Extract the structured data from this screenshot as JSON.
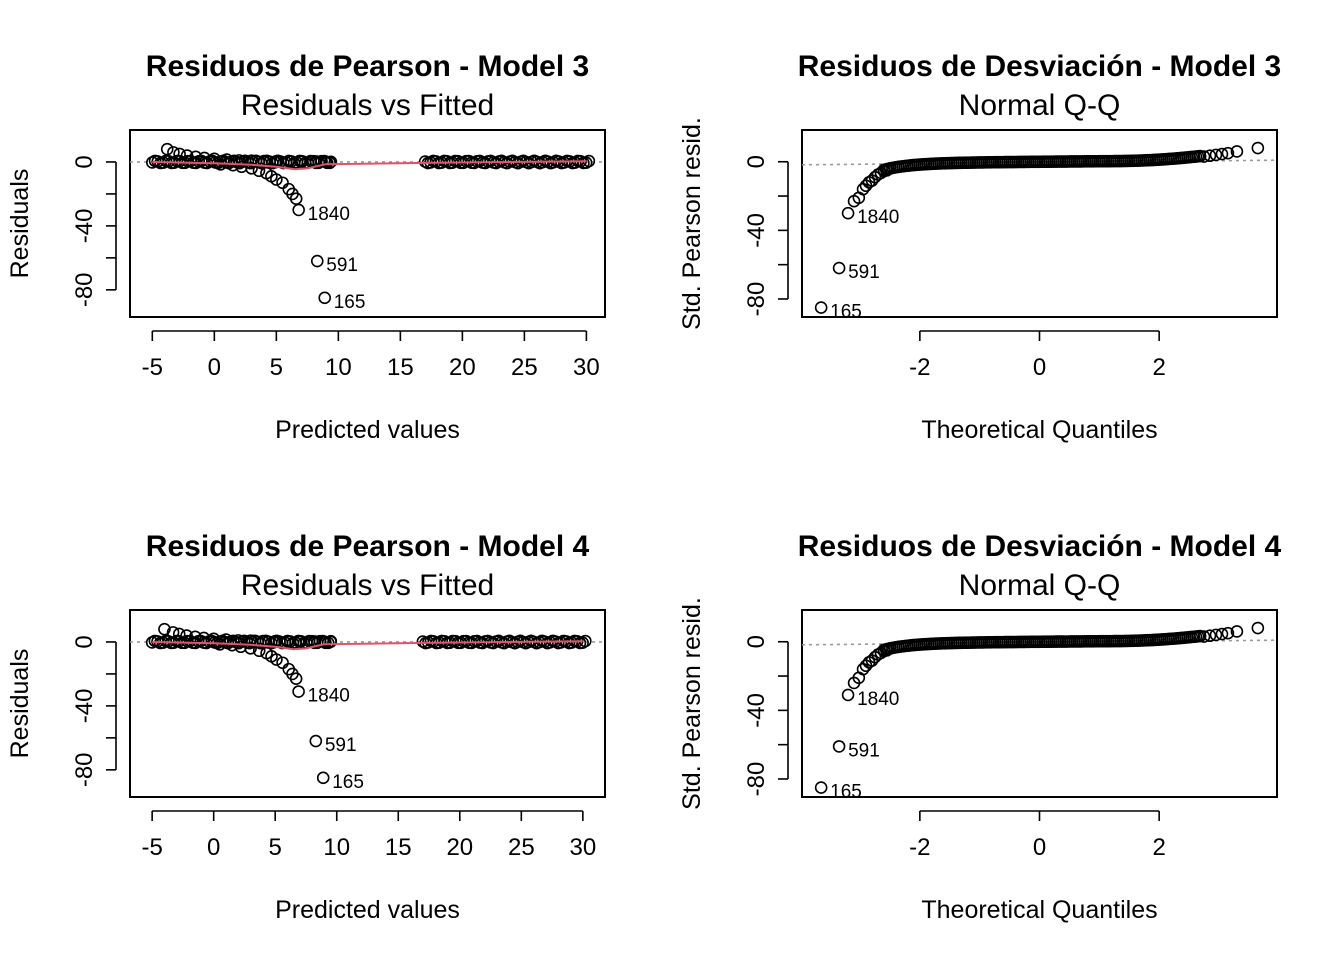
{
  "chart_data": [
    {
      "type": "scatter",
      "title": "Residuos de Pearson - Model 3",
      "subtitle": "Residuals vs Fitted",
      "xlabel": "Predicted values",
      "ylabel": "Residuals",
      "xlim": [
        -6.8,
        31.5
      ],
      "ylim": [
        -97,
        20
      ],
      "xticks": [
        -5,
        0,
        5,
        10,
        15,
        20,
        25,
        30
      ],
      "xtick_labels": [
        "-5",
        "0",
        "5",
        "10",
        "15",
        "20",
        "25",
        "30"
      ],
      "yticks": [
        0,
        -20,
        -40,
        -60,
        -80
      ],
      "ytick_labels": [
        "0",
        "",
        "-40",
        "",
        "-80"
      ],
      "reference_line": {
        "y": 0,
        "style": "dotted",
        "color": "#9a9a9a"
      },
      "smoother": {
        "color": "#DF536B",
        "x": [
          -5,
          0,
          3,
          5,
          6.5,
          7.5,
          9,
          17,
          30
        ],
        "y": [
          0,
          -0.8,
          -1.8,
          -3,
          -4.6,
          -4,
          -1.4,
          -0.6,
          0.5
        ]
      },
      "dense_bands": [
        {
          "x_from": -5,
          "x_to": 9.5,
          "y": 0
        },
        {
          "x_from": 17,
          "x_to": 30.3,
          "y": 0
        }
      ],
      "points": [
        {
          "x": -3.8,
          "y": 8
        },
        {
          "x": -3.3,
          "y": 6
        },
        {
          "x": -2.8,
          "y": 5
        },
        {
          "x": -2.2,
          "y": 4
        },
        {
          "x": -1.5,
          "y": 3.2
        },
        {
          "x": -0.8,
          "y": 2.5
        },
        {
          "x": 0,
          "y": 2
        },
        {
          "x": 1,
          "y": 1.5
        },
        {
          "x": 2,
          "y": 1
        },
        {
          "x": 3,
          "y": 0.8
        },
        {
          "x": 4,
          "y": 0.6
        },
        {
          "x": 5,
          "y": 0.5
        },
        {
          "x": 6,
          "y": 0.4
        },
        {
          "x": 7,
          "y": 0.3
        },
        {
          "x": 8.2,
          "y": 0.3
        },
        {
          "x": 9,
          "y": 0.2
        },
        {
          "x": 9.4,
          "y": 0.1
        },
        {
          "x": 0.5,
          "y": -1.5
        },
        {
          "x": 1.5,
          "y": -2
        },
        {
          "x": 2.2,
          "y": -3
        },
        {
          "x": 3,
          "y": -4
        },
        {
          "x": 3.6,
          "y": -5.5
        },
        {
          "x": 4.2,
          "y": -7
        },
        {
          "x": 4.6,
          "y": -9
        },
        {
          "x": 5.0,
          "y": -11
        },
        {
          "x": 5.5,
          "y": -13
        },
        {
          "x": 6.0,
          "y": -17
        },
        {
          "x": 6.3,
          "y": -20
        },
        {
          "x": 6.6,
          "y": -23
        },
        {
          "x": 6.8,
          "y": -30
        },
        {
          "x": 8.3,
          "y": -62
        },
        {
          "x": 8.9,
          "y": -85
        }
      ],
      "labeled_points": [
        {
          "x": 6.8,
          "y": -30,
          "label": "1840"
        },
        {
          "x": 8.3,
          "y": -62,
          "label": "591"
        },
        {
          "x": 8.9,
          "y": -85,
          "label": "165"
        }
      ]
    },
    {
      "type": "scatter",
      "title": "Residuos de Desviación - Model 3",
      "subtitle": "Normal Q-Q",
      "xlabel": "Theoretical Quantiles",
      "ylabel": "Std. Pearson resid.",
      "xlim": [
        -3.97,
        3.97
      ],
      "ylim": [
        -90.5,
        18.5
      ],
      "xticks": [
        -2,
        0,
        2
      ],
      "xtick_labels": [
        "-2",
        "0",
        "2"
      ],
      "yticks": [
        0,
        -20,
        -40,
        -60,
        -80
      ],
      "ytick_labels": [
        "0",
        "",
        "-40",
        "",
        "-80"
      ],
      "reference_line": {
        "from": [
          -3.97,
          -1.8
        ],
        "to": [
          3.97,
          0.9
        ],
        "style": "dotted",
        "color": "#9a9a9a"
      },
      "qq_band": {
        "x_from": -2.6,
        "x_to": 2.7
      },
      "points": [
        {
          "x": -3.65,
          "y": -85
        },
        {
          "x": -3.35,
          "y": -62
        },
        {
          "x": -3.2,
          "y": -30
        },
        {
          "x": -3.1,
          "y": -23
        },
        {
          "x": -3.02,
          "y": -21
        },
        {
          "x": -2.95,
          "y": -16
        },
        {
          "x": -2.9,
          "y": -14
        },
        {
          "x": -2.85,
          "y": -12
        },
        {
          "x": -2.8,
          "y": -11
        },
        {
          "x": -2.75,
          "y": -9
        },
        {
          "x": -2.7,
          "y": -7.5
        },
        {
          "x": -2.65,
          "y": -6.5
        },
        {
          "x": -2.6,
          "y": -5.5
        },
        {
          "x": -2.55,
          "y": -5
        },
        {
          "x": -2.5,
          "y": -4
        },
        {
          "x": 2.75,
          "y": 3
        },
        {
          "x": 2.85,
          "y": 3.5
        },
        {
          "x": 2.95,
          "y": 4
        },
        {
          "x": 3.05,
          "y": 4.5
        },
        {
          "x": 3.15,
          "y": 5
        },
        {
          "x": 3.3,
          "y": 6
        },
        {
          "x": 3.65,
          "y": 8
        }
      ],
      "labeled_points": [
        {
          "x": -3.2,
          "y": -30,
          "label": "1840"
        },
        {
          "x": -3.35,
          "y": -62,
          "label": "591"
        },
        {
          "x": -3.65,
          "y": -85,
          "label": "165"
        }
      ]
    },
    {
      "type": "scatter",
      "title": "Residuos de Pearson - Model 4",
      "subtitle": "Residuals vs Fitted",
      "xlabel": "Predicted values",
      "ylabel": "Residuals",
      "xlim": [
        -6.8,
        31.8
      ],
      "ylim": [
        -97,
        20
      ],
      "xticks": [
        -5,
        0,
        5,
        10,
        15,
        20,
        25,
        30
      ],
      "xtick_labels": [
        "-5",
        "0",
        "5",
        "10",
        "15",
        "20",
        "25",
        "30"
      ],
      "yticks": [
        0,
        -20,
        -40,
        -60,
        -80
      ],
      "ytick_labels": [
        "0",
        "",
        "-40",
        "",
        "-80"
      ],
      "reference_line": {
        "y": 0,
        "style": "dotted",
        "color": "#9a9a9a"
      },
      "smoother": {
        "color": "#DF536B",
        "x": [
          -5,
          0,
          3,
          5,
          6.5,
          7.5,
          9,
          17,
          30
        ],
        "y": [
          0,
          -0.8,
          -1.8,
          -3,
          -4.6,
          -4,
          -1.4,
          -0.6,
          0.5
        ]
      },
      "dense_bands": [
        {
          "x_from": -5,
          "x_to": 9.6,
          "y": 0
        },
        {
          "x_from": 17,
          "x_to": 30.4,
          "y": 0
        }
      ],
      "points": [
        {
          "x": -4.0,
          "y": 8
        },
        {
          "x": -3.3,
          "y": 6
        },
        {
          "x": -2.8,
          "y": 5
        },
        {
          "x": -2.2,
          "y": 4
        },
        {
          "x": -1.5,
          "y": 3.2
        },
        {
          "x": -0.8,
          "y": 2.5
        },
        {
          "x": 0,
          "y": 2
        },
        {
          "x": 1,
          "y": 1.5
        },
        {
          "x": 2,
          "y": 1
        },
        {
          "x": 3,
          "y": 0.8
        },
        {
          "x": 4,
          "y": 0.6
        },
        {
          "x": 5,
          "y": 0.5
        },
        {
          "x": 6,
          "y": 0.4
        },
        {
          "x": 7,
          "y": 0.3
        },
        {
          "x": 8.2,
          "y": 0.3
        },
        {
          "x": 9,
          "y": 0.2
        },
        {
          "x": 9.5,
          "y": 0.1
        },
        {
          "x": 0.5,
          "y": -1.5
        },
        {
          "x": 1.5,
          "y": -2
        },
        {
          "x": 2.2,
          "y": -3
        },
        {
          "x": 3,
          "y": -4
        },
        {
          "x": 3.7,
          "y": -5.5
        },
        {
          "x": 4.3,
          "y": -7
        },
        {
          "x": 4.7,
          "y": -9
        },
        {
          "x": 5.1,
          "y": -11
        },
        {
          "x": 5.6,
          "y": -13
        },
        {
          "x": 6.1,
          "y": -17
        },
        {
          "x": 6.4,
          "y": -20
        },
        {
          "x": 6.7,
          "y": -23
        },
        {
          "x": 6.9,
          "y": -31
        },
        {
          "x": 8.3,
          "y": -62
        },
        {
          "x": 8.9,
          "y": -85
        }
      ],
      "labeled_points": [
        {
          "x": 6.9,
          "y": -31,
          "label": "1840"
        },
        {
          "x": 8.3,
          "y": -62,
          "label": "591"
        },
        {
          "x": 8.9,
          "y": -85,
          "label": "165"
        }
      ]
    },
    {
      "type": "scatter",
      "title": "Residuos de Desviación - Model 4",
      "subtitle": "Normal Q-Q",
      "xlabel": "Theoretical Quantiles",
      "ylabel": "Std. Pearson resid.",
      "xlim": [
        -3.97,
        3.97
      ],
      "ylim": [
        -90.5,
        18.5
      ],
      "xticks": [
        -2,
        0,
        2
      ],
      "xtick_labels": [
        "-2",
        "0",
        "2"
      ],
      "yticks": [
        0,
        -20,
        -40,
        -60,
        -80
      ],
      "ytick_labels": [
        "0",
        "",
        "-40",
        "",
        "-80"
      ],
      "reference_line": {
        "from": [
          -3.97,
          -1.8
        ],
        "to": [
          3.97,
          0.9
        ],
        "style": "dotted",
        "color": "#9a9a9a"
      },
      "qq_band": {
        "x_from": -2.6,
        "x_to": 2.7
      },
      "points": [
        {
          "x": -3.65,
          "y": -85
        },
        {
          "x": -3.35,
          "y": -61
        },
        {
          "x": -3.2,
          "y": -31
        },
        {
          "x": -3.1,
          "y": -24
        },
        {
          "x": -3.02,
          "y": -21
        },
        {
          "x": -2.95,
          "y": -16
        },
        {
          "x": -2.9,
          "y": -14
        },
        {
          "x": -2.85,
          "y": -12
        },
        {
          "x": -2.8,
          "y": -11
        },
        {
          "x": -2.75,
          "y": -9
        },
        {
          "x": -2.7,
          "y": -7.5
        },
        {
          "x": -2.65,
          "y": -6.5
        },
        {
          "x": -2.6,
          "y": -5.5
        },
        {
          "x": -2.55,
          "y": -5
        },
        {
          "x": -2.5,
          "y": -4
        },
        {
          "x": 2.75,
          "y": 3
        },
        {
          "x": 2.85,
          "y": 3.5
        },
        {
          "x": 2.95,
          "y": 4
        },
        {
          "x": 3.05,
          "y": 4.5
        },
        {
          "x": 3.15,
          "y": 5
        },
        {
          "x": 3.3,
          "y": 6
        },
        {
          "x": 3.65,
          "y": 8
        }
      ],
      "labeled_points": [
        {
          "x": -3.2,
          "y": -31,
          "label": "1840"
        },
        {
          "x": -3.35,
          "y": -61,
          "label": "591"
        },
        {
          "x": -3.65,
          "y": -85,
          "label": "165"
        }
      ]
    }
  ]
}
